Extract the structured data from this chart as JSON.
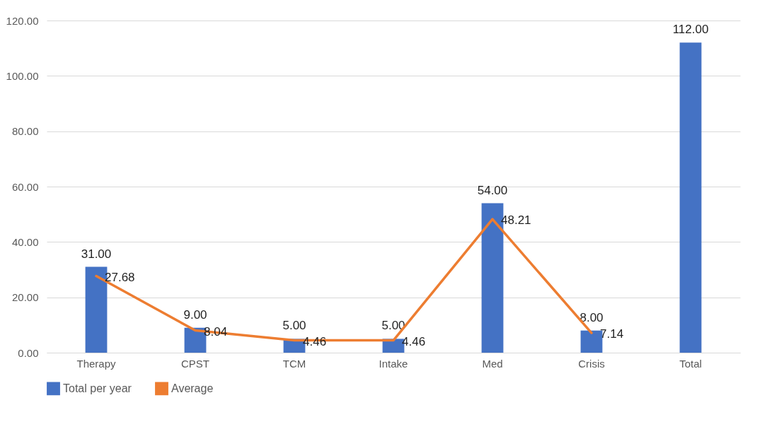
{
  "chart_data": {
    "type": "bar",
    "categories": [
      "Therapy",
      "CPST",
      "TCM",
      "Intake",
      "Med",
      "Crisis",
      "Total"
    ],
    "series": [
      {
        "name": "Total per year",
        "color": "#4472c4",
        "values": [
          31,
          9,
          5,
          5,
          54,
          8,
          112
        ],
        "value_labels": [
          "31.00",
          "9.00",
          "5.00",
          "5.00",
          "54.00",
          "8.00",
          "112.00"
        ]
      },
      {
        "name": "Average",
        "type": "line",
        "color": "#ed7d31",
        "values": [
          27.68,
          8.04,
          4.46,
          4.46,
          48.21,
          7.14,
          null
        ],
        "value_labels": [
          "27.68",
          "8.04",
          "4.46",
          "4.46",
          "48.21",
          "7.14",
          null
        ]
      }
    ],
    "ylim": [
      0,
      120
    ],
    "yticks": [
      {
        "value": 0,
        "label": "0.00"
      },
      {
        "value": 20,
        "label": "20.00"
      },
      {
        "value": 40,
        "label": "40.00"
      },
      {
        "value": 60,
        "label": "60.00"
      },
      {
        "value": 80,
        "label": "80.00"
      },
      {
        "value": 100,
        "label": "100.00"
      },
      {
        "value": 120,
        "label": "120.00"
      }
    ],
    "grid": "y",
    "legend": "bottom"
  }
}
